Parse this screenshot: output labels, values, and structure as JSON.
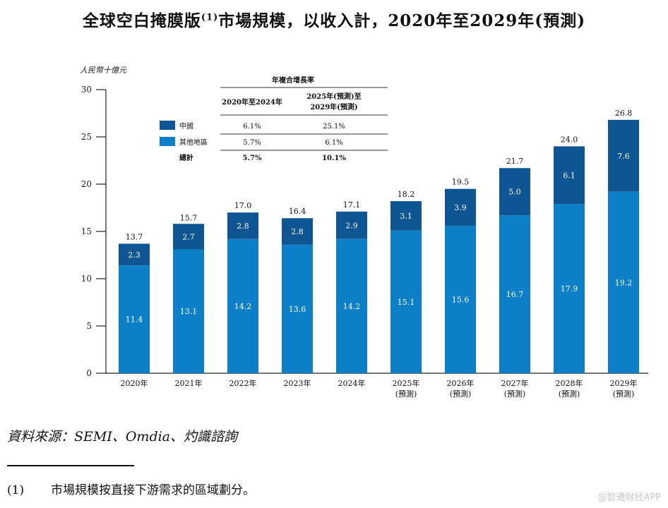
{
  "title": {
    "text": "全球空白掩膜版",
    "sup": "(1)",
    "text2": "市場規模，以收入計，2020年至2029年(預測)"
  },
  "chart_data": {
    "type": "bar",
    "stacked": true,
    "ylabel": "人民幣十億元",
    "ylim": [
      0,
      30
    ],
    "yticks": [
      0,
      5,
      10,
      15,
      20,
      25,
      30
    ],
    "categories": [
      [
        "2020年"
      ],
      [
        "2021年"
      ],
      [
        "2022年"
      ],
      [
        "2023年"
      ],
      [
        "2024年"
      ],
      [
        "2025年",
        "(預測)"
      ],
      [
        "2026年",
        "(預測)"
      ],
      [
        "2027年",
        "(預測)"
      ],
      [
        "2028年",
        "(預測)"
      ],
      [
        "2029年",
        "(預測)"
      ]
    ],
    "series": [
      {
        "name": "其他地區",
        "color": "#0b7fc7",
        "values": [
          11.4,
          13.1,
          14.2,
          13.6,
          14.2,
          15.1,
          15.6,
          16.7,
          17.9,
          19.2
        ]
      },
      {
        "name": "中國",
        "color": "#0d5593",
        "values": [
          2.3,
          2.7,
          2.8,
          2.8,
          2.9,
          3.1,
          3.9,
          5.0,
          6.1,
          7.6
        ]
      }
    ],
    "totals": [
      13.7,
      15.7,
      17.0,
      16.4,
      17.1,
      18.2,
      19.5,
      21.7,
      24.0,
      26.8
    ],
    "cagr_table": {
      "title": "年複合增長率",
      "headers": [
        "2020年至2024年",
        [
          "2025年(預測)至",
          "2029年(預測)"
        ]
      ],
      "rows": [
        {
          "label": "中國",
          "color": "#0d5593",
          "values": [
            "6.1%",
            "25.1%"
          ]
        },
        {
          "label": "其他地區",
          "color": "#0b7fc7",
          "values": [
            "5.7%",
            "6.1%"
          ]
        },
        {
          "label": "總計",
          "color": null,
          "values": [
            "5.7%",
            "10.1%"
          ],
          "bold": true
        }
      ]
    }
  },
  "source": "資料來源：SEMI、Omdia、灼識諮詢",
  "footnote": {
    "num": "(1)",
    "text": "市場規模按直接下游需求的區域劃分。"
  },
  "watermark": "@智通财经APP"
}
